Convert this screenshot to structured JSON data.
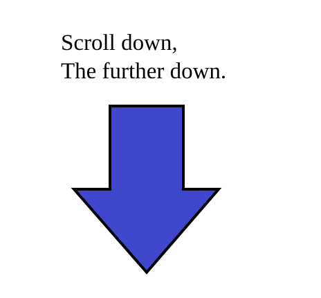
{
  "caption": {
    "line1": "Scroll down,",
    "line2": "The further down."
  },
  "arrow": {
    "icon": "arrow-down-icon",
    "fill_color": "#3f48cc",
    "outline_color": "#000000"
  }
}
